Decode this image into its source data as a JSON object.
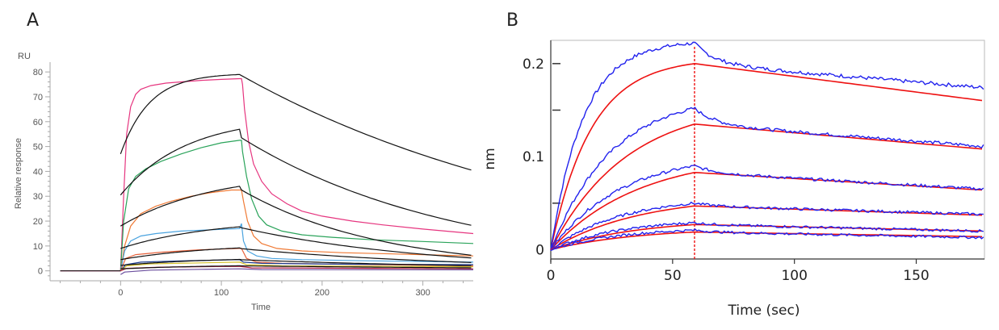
{
  "figure": {
    "panel_a_letter": "A",
    "panel_b_letter": "B"
  },
  "chart_data": [
    {
      "panel": "A",
      "type": "line",
      "title": "",
      "unit_label": "RU",
      "xlabel": "Time",
      "ylabel": "Relative response",
      "xlim": [
        -70,
        350
      ],
      "ylim": [
        -4,
        82
      ],
      "xticks": [
        0,
        100,
        200,
        300
      ],
      "yticks": [
        0,
        10,
        20,
        30,
        40,
        50,
        60,
        70,
        80
      ],
      "grid": false,
      "colors": {
        "axis": "#aaaaaa",
        "fit": "#111111"
      },
      "series": [
        {
          "kind": "data",
          "color": "#e6357f",
          "points": [
            [
              -60,
              0
            ],
            [
              0,
              0
            ],
            [
              3,
              30
            ],
            [
              6,
              55
            ],
            [
              10,
              66
            ],
            [
              15,
              71
            ],
            [
              20,
              73
            ],
            [
              30,
              74.5
            ],
            [
              45,
              75.5
            ],
            [
              60,
              76
            ],
            [
              80,
              76.6
            ],
            [
              100,
              77
            ],
            [
              118,
              77.3
            ],
            [
              120,
              77.3
            ],
            [
              121,
              75
            ],
            [
              123,
              65
            ],
            [
              127,
              52
            ],
            [
              132,
              43
            ],
            [
              140,
              36
            ],
            [
              150,
              31
            ],
            [
              165,
              27
            ],
            [
              180,
              24
            ],
            [
              200,
              22
            ],
            [
              230,
              20
            ],
            [
              260,
              18.5
            ],
            [
              300,
              16.8
            ],
            [
              350,
              15
            ]
          ]
        },
        {
          "kind": "data",
          "color": "#2aa35a",
          "points": [
            [
              0,
              0
            ],
            [
              3,
              20
            ],
            [
              8,
              33
            ],
            [
              15,
              38
            ],
            [
              25,
              41
            ],
            [
              40,
              44
            ],
            [
              60,
              47
            ],
            [
              80,
              49.5
            ],
            [
              100,
              51.5
            ],
            [
              118,
              52.5
            ],
            [
              120,
              52.5
            ],
            [
              121,
              48
            ],
            [
              125,
              38
            ],
            [
              130,
              29
            ],
            [
              137,
              22
            ],
            [
              145,
              18.5
            ],
            [
              160,
              16
            ],
            [
              180,
              14.5
            ],
            [
              210,
              13.5
            ],
            [
              250,
              12.5
            ],
            [
              300,
              11.8
            ],
            [
              350,
              11
            ]
          ]
        },
        {
          "kind": "data",
          "color": "#f07a35",
          "points": [
            [
              0,
              0
            ],
            [
              4,
              10
            ],
            [
              10,
              18
            ],
            [
              20,
              23
            ],
            [
              35,
              26
            ],
            [
              50,
              28
            ],
            [
              70,
              30
            ],
            [
              90,
              31.5
            ],
            [
              110,
              32.5
            ],
            [
              118,
              32.5
            ],
            [
              120,
              32.5
            ],
            [
              122,
              28
            ],
            [
              126,
              20
            ],
            [
              132,
              14
            ],
            [
              140,
              11
            ],
            [
              155,
              9
            ],
            [
              180,
              8
            ],
            [
              220,
              7.3
            ],
            [
              270,
              6.8
            ],
            [
              350,
              6
            ]
          ]
        },
        {
          "kind": "data",
          "color": "#4aa3df",
          "points": [
            [
              0,
              0
            ],
            [
              4,
              8
            ],
            [
              10,
              12
            ],
            [
              20,
              14
            ],
            [
              35,
              15
            ],
            [
              60,
              16
            ],
            [
              90,
              16.5
            ],
            [
              118,
              17
            ],
            [
              120,
              19
            ],
            [
              122,
              12
            ],
            [
              126,
              8
            ],
            [
              135,
              6
            ],
            [
              150,
              5
            ],
            [
              180,
              4.5
            ],
            [
              250,
              4
            ],
            [
              350,
              3.5
            ]
          ]
        },
        {
          "kind": "data",
          "color": "#e7623c",
          "points": [
            [
              0,
              0
            ],
            [
              5,
              5
            ],
            [
              15,
              6.5
            ],
            [
              40,
              7.5
            ],
            [
              80,
              8.5
            ],
            [
              118,
              9
            ],
            [
              120,
              9
            ],
            [
              125,
              5
            ],
            [
              135,
              3.5
            ],
            [
              160,
              3
            ],
            [
              250,
              2.5
            ],
            [
              350,
              2
            ]
          ]
        },
        {
          "kind": "data",
          "color": "#1f3f8f",
          "points": [
            [
              0,
              0
            ],
            [
              5,
              2.5
            ],
            [
              20,
              3.5
            ],
            [
              60,
              4
            ],
            [
              118,
              4.5
            ],
            [
              122,
              3.5
            ],
            [
              140,
              3
            ],
            [
              220,
              2.7
            ],
            [
              350,
              2.5
            ]
          ]
        },
        {
          "kind": "data",
          "color": "#d4c02c",
          "points": [
            [
              0,
              0
            ],
            [
              6,
              2
            ],
            [
              30,
              2.8
            ],
            [
              80,
              3.2
            ],
            [
              118,
              3.5
            ],
            [
              125,
              2.5
            ],
            [
              160,
              2
            ],
            [
              260,
              1.8
            ],
            [
              350,
              1.6
            ]
          ]
        },
        {
          "kind": "data",
          "color": "#b5264a",
          "points": [
            [
              0,
              0
            ],
            [
              6,
              1
            ],
            [
              40,
              1.5
            ],
            [
              118,
              1.8
            ],
            [
              130,
              1.2
            ],
            [
              250,
              1
            ],
            [
              350,
              0.8
            ]
          ]
        },
        {
          "kind": "data",
          "color": "#6b4e9e",
          "points": [
            [
              0,
              -1.5
            ],
            [
              4,
              -0.5
            ],
            [
              30,
              0.3
            ],
            [
              80,
              0.6
            ],
            [
              118,
              0.8
            ],
            [
              140,
              0.5
            ],
            [
              350,
              0.4
            ]
          ]
        },
        {
          "kind": "fit",
          "conc_index": 1,
          "plateau": 79.5,
          "kon": 0.035,
          "y0": 47,
          "end": 79,
          "koff": 0.0029
        },
        {
          "kind": "fit",
          "conc_index": 2,
          "plateau": 62,
          "kon": 0.0155,
          "y0": 30.5,
          "end": 54,
          "koff": 0.0047
        },
        {
          "kind": "fit",
          "conc_index": 3,
          "plateau": 40,
          "kon": 0.011,
          "y0": 18,
          "end": 33,
          "koff": 0.0072
        },
        {
          "kind": "fit",
          "conc_index": 4,
          "plateau": 21,
          "kon": 0.011,
          "y0": 9,
          "end": 17.5,
          "koff": 0.0053
        },
        {
          "kind": "fit",
          "conc_index": 5,
          "plateau": 11,
          "kon": 0.011,
          "y0": 4.5,
          "end": 9,
          "koff": 0.0043
        },
        {
          "kind": "fit",
          "conc_index": 6,
          "plateau": 5.5,
          "kon": 0.011,
          "y0": 2.2,
          "end": 4.5,
          "koff": 0.0034
        },
        {
          "kind": "fit",
          "conc_index": 7,
          "plateau": 2.5,
          "kon": 0.011,
          "y0": 0.8,
          "end": 2.0,
          "koff": 0.0022
        }
      ]
    },
    {
      "panel": "B",
      "type": "line",
      "title": "",
      "xlabel": "Time (sec)",
      "ylabel": "nm",
      "xlim": [
        0,
        178
      ],
      "ylim": [
        -0.01,
        0.225
      ],
      "xticks": [
        0,
        50,
        100,
        150
      ],
      "xtick_labels": [
        "0",
        "50",
        "100",
        "150"
      ],
      "yticks": [
        0,
        0.1,
        0.2
      ],
      "ytick_labels": [
        "0",
        "0.1",
        "0.2"
      ],
      "y_minor_ticks": [
        0.05,
        0.15,
        0.2
      ],
      "association_end": 59,
      "grid": false,
      "colors": {
        "fit": "#ee1111",
        "data": "#2222ee",
        "frame": "#bbbbbb"
      },
      "series": [
        {
          "kind": "curve",
          "plateau": 0.205,
          "kon": 0.06,
          "peak": 0.2,
          "data_peak": 0.222,
          "dissoc_end": 0.16,
          "data_end": 0.174
        },
        {
          "kind": "curve",
          "plateau": 0.16,
          "kon": 0.032,
          "peak": 0.135,
          "data_peak": 0.152,
          "dissoc_end": 0.108,
          "data_end": 0.111
        },
        {
          "kind": "curve",
          "plateau": 0.105,
          "kon": 0.028,
          "peak": 0.083,
          "data_peak": 0.09,
          "dissoc_end": 0.064,
          "data_end": 0.065
        },
        {
          "kind": "curve",
          "plateau": 0.06,
          "kon": 0.028,
          "peak": 0.047,
          "data_peak": 0.05,
          "dissoc_end": 0.037,
          "data_end": 0.038
        },
        {
          "kind": "curve",
          "plateau": 0.035,
          "kon": 0.028,
          "peak": 0.027,
          "data_peak": 0.029,
          "dissoc_end": 0.02,
          "data_end": 0.02
        },
        {
          "kind": "curve",
          "plateau": 0.025,
          "kon": 0.028,
          "peak": 0.019,
          "data_peak": 0.021,
          "dissoc_end": 0.014,
          "data_end": 0.013
        }
      ]
    }
  ]
}
